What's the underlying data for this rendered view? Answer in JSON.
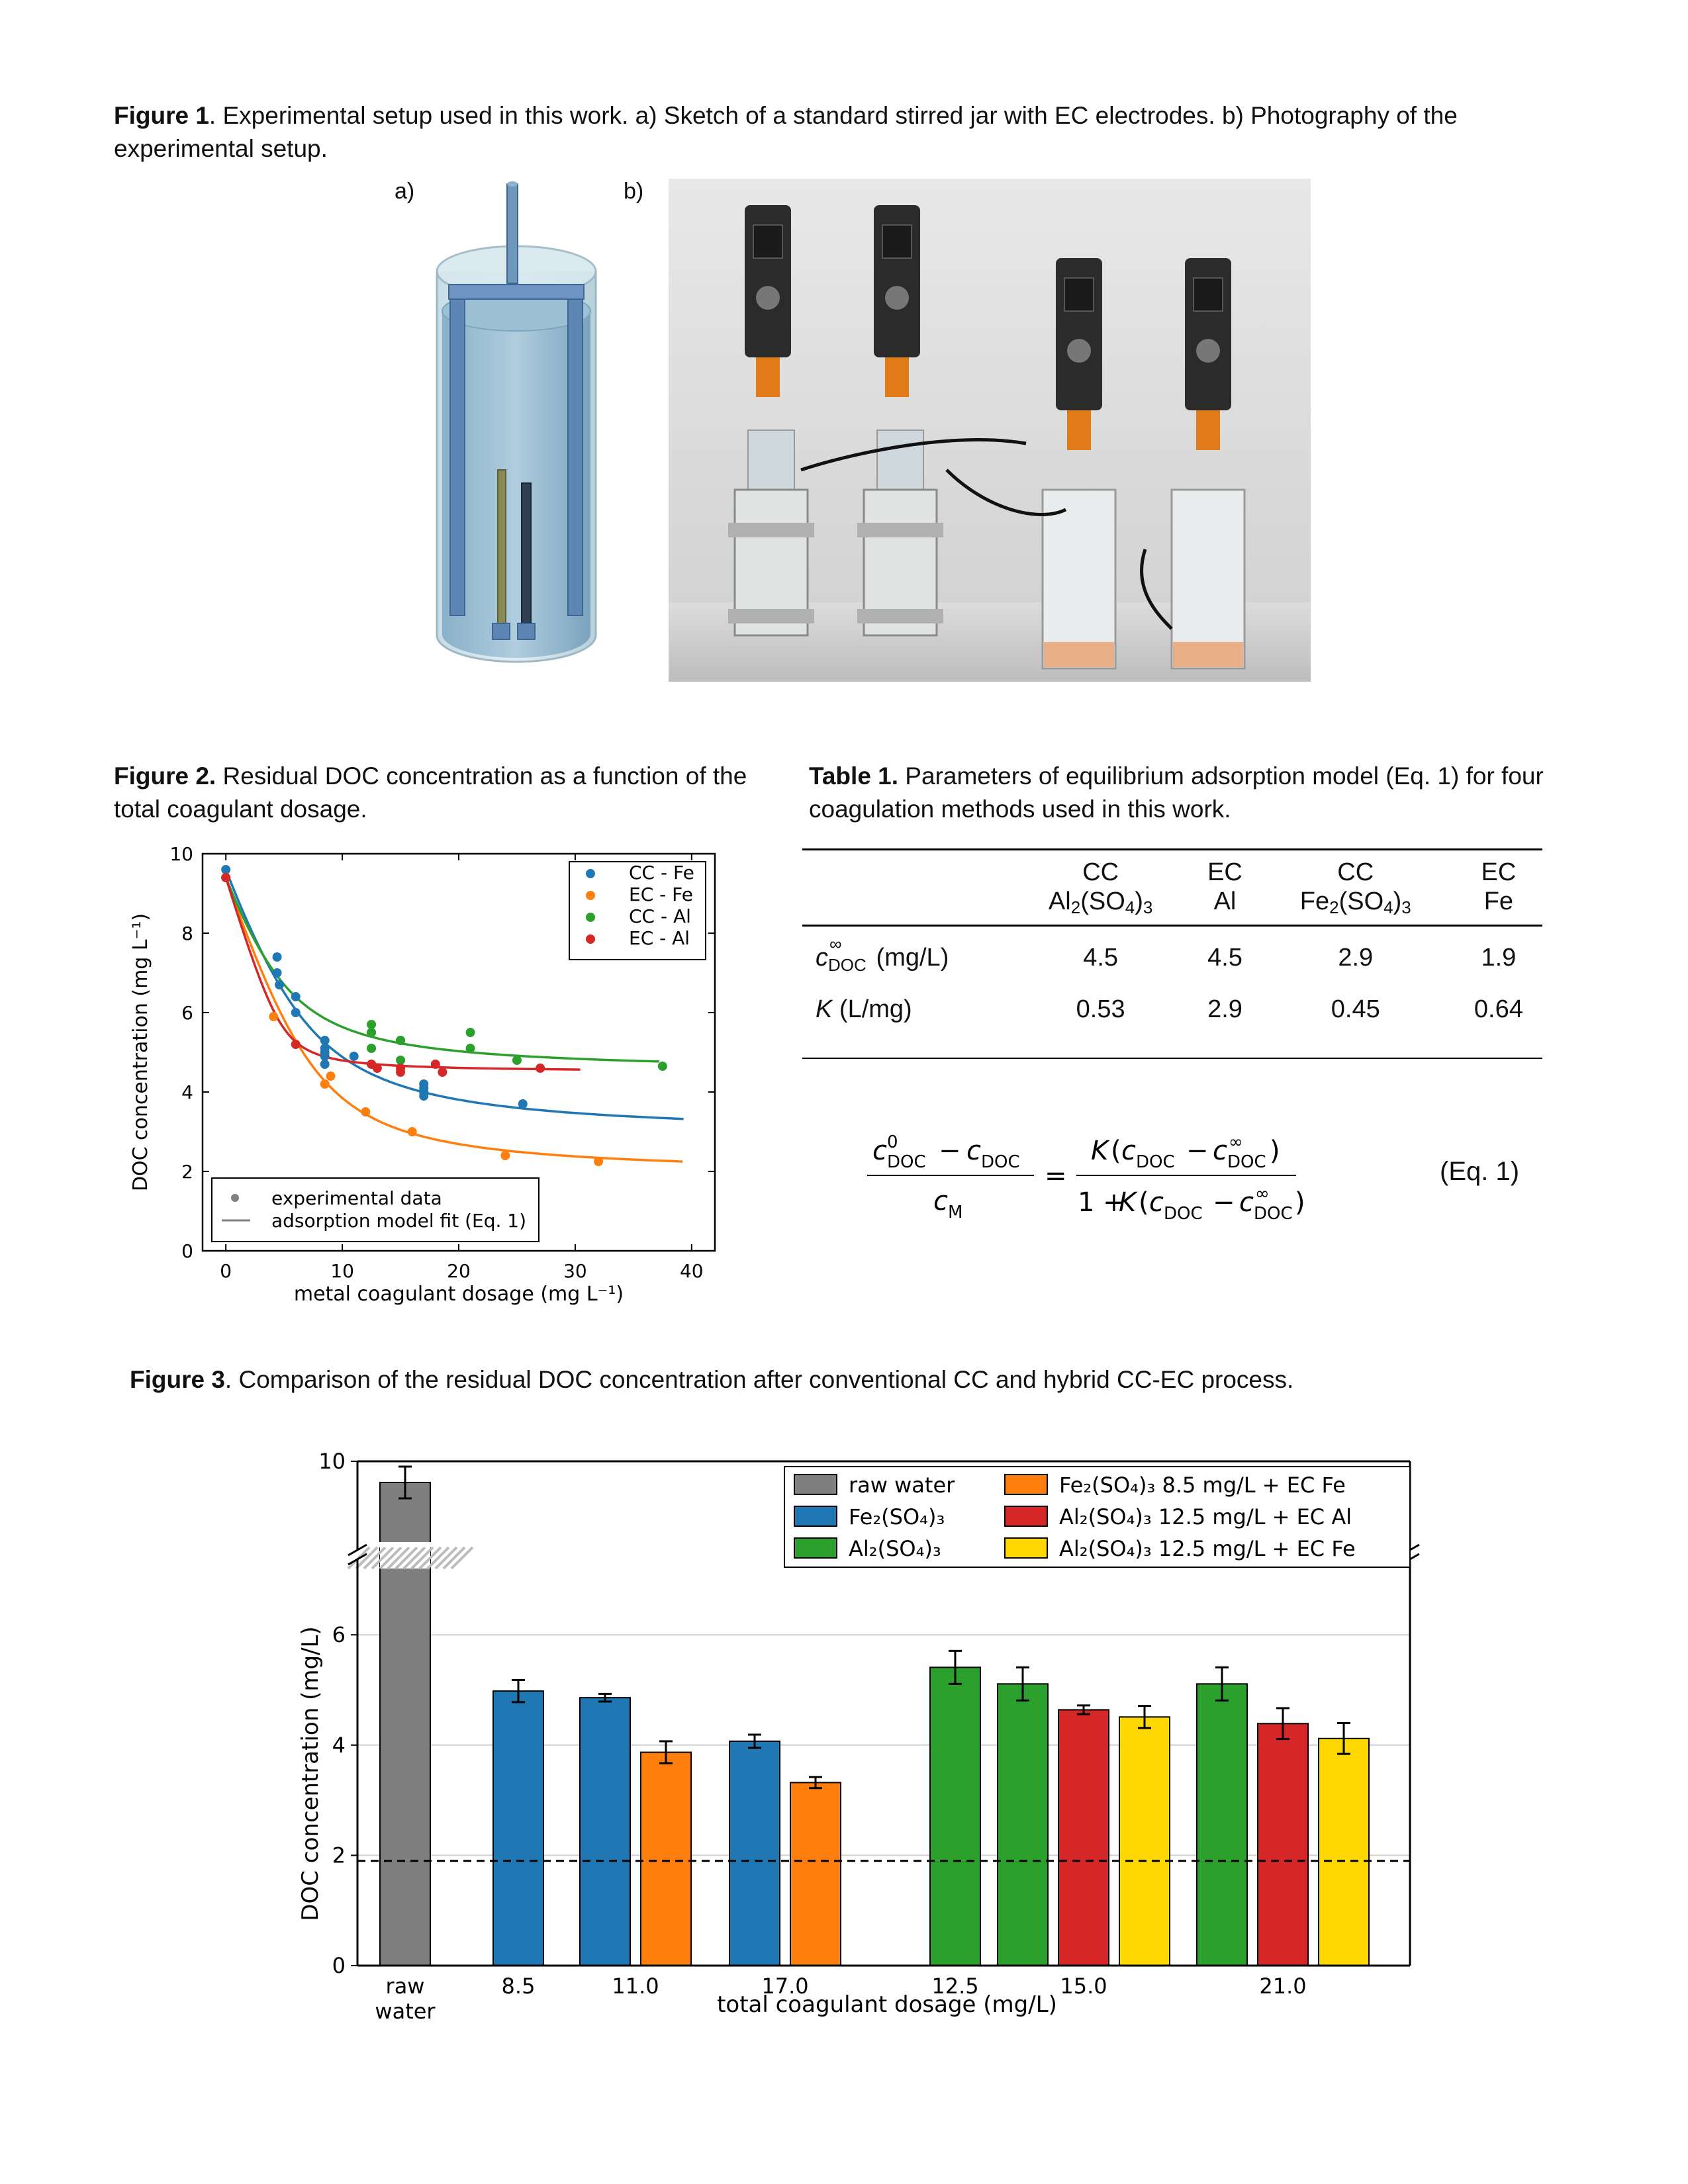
{
  "figure1": {
    "label": "Figure 1",
    "caption": ". Experimental setup used in this work. a) Sketch of a standard stirred jar with EC electrodes. b) Photography of the experimental setup.",
    "panel_a": "a)",
    "panel_b": "b)"
  },
  "figure2": {
    "label": "Figure 2.",
    "caption": " Residual DOC concentration as a function of the total coagulant dosage.",
    "chart_data": {
      "type": "scatter",
      "xlabel": "metal coagulant dosage (mg L⁻¹)",
      "ylabel": "DOC concentration (mg L⁻¹)",
      "xlim": [
        -2,
        42
      ],
      "ylim": [
        0,
        10
      ],
      "x_ticks": [
        "0",
        "10",
        "20",
        "30",
        "40"
      ],
      "y_ticks": [
        "0",
        "2",
        "4",
        "6",
        "8",
        "10"
      ],
      "legend_top_right": [
        "CC - Fe",
        "EC - Fe",
        "CC - Al",
        "EC - Al"
      ],
      "legend_bottom_left": [
        "experimental data",
        "adsorption model fit (Eq. 1)"
      ],
      "colors": {
        "CC - Fe": "#1f77b4",
        "EC - Fe": "#ff7f0e",
        "CC - Al": "#2ca02c",
        "EC - Al": "#d62728"
      },
      "series": [
        {
          "name": "CC - Fe",
          "points": [
            [
              0,
              9.6
            ],
            [
              4.4,
              7.4
            ],
            [
              4.4,
              7.0
            ],
            [
              4.6,
              6.7
            ],
            [
              6,
              6.4
            ],
            [
              6,
              6.0
            ],
            [
              8.5,
              5.3
            ],
            [
              8.5,
              5.1
            ],
            [
              8.5,
              5.0
            ],
            [
              8.5,
              4.9
            ],
            [
              8.5,
              4.7
            ],
            [
              11,
              4.9
            ],
            [
              17,
              4.2
            ],
            [
              17,
              4.0
            ],
            [
              17,
              4.1
            ],
            [
              17,
              3.9
            ],
            [
              25.5,
              3.7
            ]
          ],
          "fit": {
            "c0": 9.6,
            "cinf": 2.9,
            "K": 0.45
          }
        },
        {
          "name": "EC - Fe",
          "points": [
            [
              0,
              9.4
            ],
            [
              4.1,
              5.9
            ],
            [
              8.5,
              4.2
            ],
            [
              9,
              4.4
            ],
            [
              12,
              3.5
            ],
            [
              16,
              3.0
            ],
            [
              24,
              2.4
            ],
            [
              32,
              2.25
            ]
          ],
          "fit": {
            "c0": 9.4,
            "cinf": 1.9,
            "K": 0.64
          }
        },
        {
          "name": "CC - Al",
          "points": [
            [
              0,
              9.4
            ],
            [
              12.5,
              5.7
            ],
            [
              12.5,
              5.5
            ],
            [
              12.5,
              5.1
            ],
            [
              15,
              5.3
            ],
            [
              15,
              5.3
            ],
            [
              15,
              4.8
            ],
            [
              21,
              5.5
            ],
            [
              21,
              5.1
            ],
            [
              25,
              4.8
            ],
            [
              37.5,
              4.65
            ]
          ],
          "fit": {
            "c0": 9.4,
            "cinf": 4.5,
            "K": 0.53
          }
        },
        {
          "name": "EC - Al",
          "points": [
            [
              0,
              9.4
            ],
            [
              6,
              5.2
            ],
            [
              12.5,
              4.7
            ],
            [
              13,
              4.6
            ],
            [
              15,
              4.6
            ],
            [
              15,
              4.5
            ],
            [
              18,
              4.7
            ],
            [
              18.6,
              4.5
            ],
            [
              27,
              4.6
            ]
          ],
          "fit": {
            "c0": 9.4,
            "cinf": 4.5,
            "K": 2.9
          }
        }
      ]
    }
  },
  "table1": {
    "label": "Table 1.",
    "caption": " Parameters of equilibrium adsorption model (Eq. 1) for four coagulation methods used in this work.",
    "columns": [
      {
        "line1": "CC",
        "line2_pre": "Al",
        "line2_s1": "2",
        "line2_mid": "(SO",
        "line2_s2": "4",
        "line2_post": ")",
        "line2_s3": "3"
      },
      {
        "line1": "EC",
        "line2": "Al"
      },
      {
        "line1": "CC",
        "line2_pre": "Fe",
        "line2_s1": "2",
        "line2_mid": "(SO",
        "line2_s2": "4",
        "line2_post": ")",
        "line2_s3": "3"
      },
      {
        "line1": "EC",
        "line2": "Fe"
      }
    ],
    "row1": {
      "sym": "c",
      "sup": "∞",
      "sub": "DOC",
      "unit": " (mg/L)",
      "values": [
        "4.5",
        "4.5",
        "2.9",
        "1.9"
      ]
    },
    "row2": {
      "sym": "K",
      "unit": " (L/mg)",
      "values": [
        "0.53",
        "2.9",
        "0.45",
        "0.64"
      ]
    }
  },
  "equation": {
    "number": "(Eq. 1)",
    "c": "c",
    "K": "K",
    "doc": "DOC",
    "M": "M",
    "zero": "0",
    "inf": "∞",
    "minus": "−",
    "equals": "=",
    "one_plus": "1 + ",
    "lparen": "(",
    "rparen": ")"
  },
  "figure3": {
    "label": "Figure 3",
    "caption": ". Comparison of the residual DOC concentration after conventional CC and hybrid CC-EC process.",
    "chart_data": {
      "type": "bar",
      "xlabel": "total coagulant dosage (mg/L)",
      "ylabel": "DOC concentration (mg/L)",
      "ylim": [
        0,
        10
      ],
      "y_ticks": [
        "0",
        "2",
        "4",
        "6",
        "10"
      ],
      "broken_axis": true,
      "reference_line": 1.9,
      "x_tick_labels": [
        "raw\nwater",
        "8.5",
        "11.0",
        "17.0",
        "12.5",
        "15.0",
        "21.0"
      ],
      "legend": [
        "raw water",
        "Fe₂(SO₄)₃",
        "Al₂(SO₄)₃",
        "Fe₂(SO₄)₃ 8.5 mg/L + EC Fe",
        "Al₂(SO₄)₃ 12.5 mg/L + EC Al",
        "Al₂(SO₄)₃ 12.5 mg/L + EC Fe"
      ],
      "colors": {
        "raw water": "#7f7f7f",
        "Fe₂(SO₄)₃": "#1f77b4",
        "Al₂(SO₄)₃": "#2ca02c",
        "Fe₂(SO₄)₃ 8.5 mg/L + EC Fe": "#ff7f0e",
        "Al₂(SO₄)₃ 12.5 mg/L + EC Al": "#d62728",
        "Al₂(SO₄)₃ 12.5 mg/L + EC Fe": "#ffd700"
      },
      "bars": [
        {
          "group": "raw water",
          "series": "raw water",
          "value": 9.6,
          "err": 0.3
        },
        {
          "group": "8.5",
          "series": "Fe₂(SO₄)₃",
          "value": 4.98,
          "err": 0.2
        },
        {
          "group": "11.0",
          "series": "Fe₂(SO₄)₃",
          "value": 4.86,
          "err": 0.07
        },
        {
          "group": "11.0",
          "series": "Fe₂(SO₄)₃ 8.5 mg/L + EC Fe",
          "value": 3.87,
          "err": 0.2
        },
        {
          "group": "17.0",
          "series": "Fe₂(SO₄)₃",
          "value": 4.07,
          "err": 0.12
        },
        {
          "group": "17.0",
          "series": "Fe₂(SO₄)₃ 8.5 mg/L + EC Fe",
          "value": 3.32,
          "err": 0.1
        },
        {
          "group": "12.5",
          "series": "Al₂(SO₄)₃",
          "value": 5.41,
          "err": 0.3
        },
        {
          "group": "15.0",
          "series": "Al₂(SO₄)₃",
          "value": 5.11,
          "err": 0.3
        },
        {
          "group": "15.0",
          "series": "Al₂(SO₄)₃ 12.5 mg/L + EC Al",
          "value": 4.64,
          "err": 0.08
        },
        {
          "group": "15.0",
          "series": "Al₂(SO₄)₃ 12.5 mg/L + EC Fe",
          "value": 4.51,
          "err": 0.2
        },
        {
          "group": "21.0",
          "series": "Al₂(SO₄)₃",
          "value": 5.11,
          "err": 0.3
        },
        {
          "group": "21.0",
          "series": "Al₂(SO₄)₃ 12.5 mg/L + EC Al",
          "value": 4.39,
          "err": 0.28
        },
        {
          "group": "21.0",
          "series": "Al₂(SO₄)₃ 12.5 mg/L + EC Fe",
          "value": 4.12,
          "err": 0.28
        }
      ]
    }
  }
}
